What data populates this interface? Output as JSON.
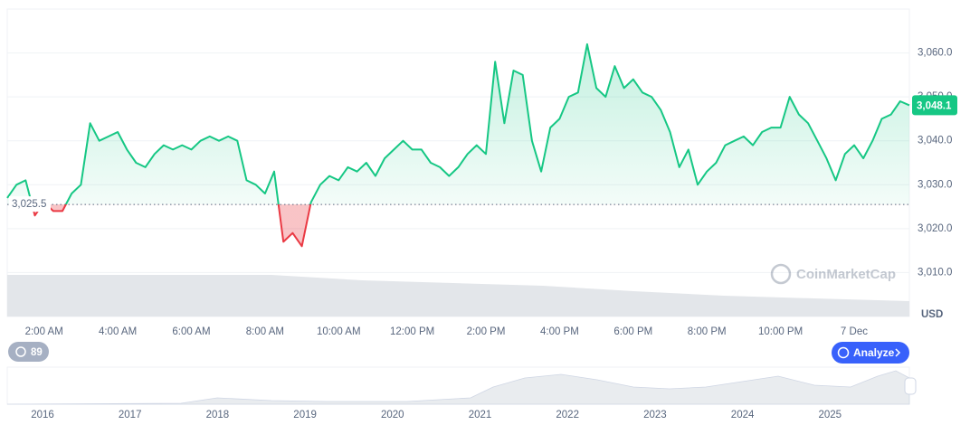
{
  "chart_data": {
    "type": "line",
    "baseline": 3025.5,
    "baseline_label": "3,025.5",
    "last_price_label": "3,048.1",
    "currency": "USD",
    "watermark": "CoinMarketCap",
    "ylim": [
      3000,
      3070
    ],
    "yticks": [
      {
        "value": 3010,
        "label": "3,010.0"
      },
      {
        "value": 3020,
        "label": "3,020.0"
      },
      {
        "value": 3030,
        "label": "3,030.0"
      },
      {
        "value": 3040,
        "label": "3,040.0"
      },
      {
        "value": 3050,
        "label": "3,050.0"
      },
      {
        "value": 3060,
        "label": "3,060.0"
      }
    ],
    "categories": [
      null,
      null,
      null,
      null,
      "2:00 AM",
      null,
      null,
      null,
      null,
      null,
      null,
      null,
      "4:00 AM",
      null,
      null,
      null,
      null,
      null,
      null,
      null,
      "6:00 AM",
      null,
      null,
      null,
      null,
      null,
      null,
      null,
      "8:00 AM",
      null,
      null,
      null,
      null,
      null,
      null,
      null,
      "10:00 AM",
      null,
      null,
      null,
      null,
      null,
      null,
      null,
      "12:00 PM",
      null,
      null,
      null,
      null,
      null,
      null,
      null,
      "2:00 PM",
      null,
      null,
      null,
      null,
      null,
      null,
      null,
      "4:00 PM",
      null,
      null,
      null,
      null,
      null,
      null,
      null,
      "6:00 PM",
      null,
      null,
      null,
      null,
      null,
      null,
      null,
      "8:00 PM",
      null,
      null,
      null,
      null,
      null,
      null,
      null,
      "10:00 PM",
      null,
      null,
      null,
      null,
      null,
      null,
      null,
      "7 Dec",
      null,
      null,
      null,
      null,
      null,
      null
    ],
    "values": [
      3027,
      3030,
      3031,
      3023,
      3026,
      3024,
      3024,
      3028,
      3030,
      3044,
      3040,
      3041,
      3042,
      3038,
      3035,
      3034,
      3037,
      3039,
      3038,
      3039,
      3038,
      3040,
      3041,
      3040,
      3041,
      3040,
      3031,
      3030,
      3028,
      3033,
      3017,
      3019,
      3016,
      3026,
      3030,
      3032,
      3031,
      3034,
      3033,
      3035,
      3032,
      3036,
      3038,
      3040,
      3038,
      3038,
      3035,
      3034,
      3032,
      3034,
      3037,
      3039,
      3037,
      3058,
      3044,
      3056,
      3055,
      3040,
      3033,
      3043,
      3045,
      3050,
      3051,
      3062,
      3052,
      3050,
      3057,
      3052,
      3054,
      3051,
      3050,
      3047,
      3042,
      3034,
      3038,
      3030,
      3033,
      3035,
      3039,
      3040,
      3041,
      3039,
      3042,
      3043,
      3043,
      3050,
      3046,
      3044,
      3040,
      3036,
      3031,
      3037,
      3039,
      3036,
      3040,
      3045,
      3046,
      3049,
      3048.1
    ],
    "up_color": "#16c784",
    "down_color": "#ea3943",
    "grid": true
  },
  "controls": {
    "history_count": "89",
    "analyze": "Analyze"
  },
  "navigator": {
    "years": [
      "2016",
      "2017",
      "2018",
      "2019",
      "2020",
      "2021",
      "2022",
      "2023",
      "2024",
      "2025"
    ]
  }
}
